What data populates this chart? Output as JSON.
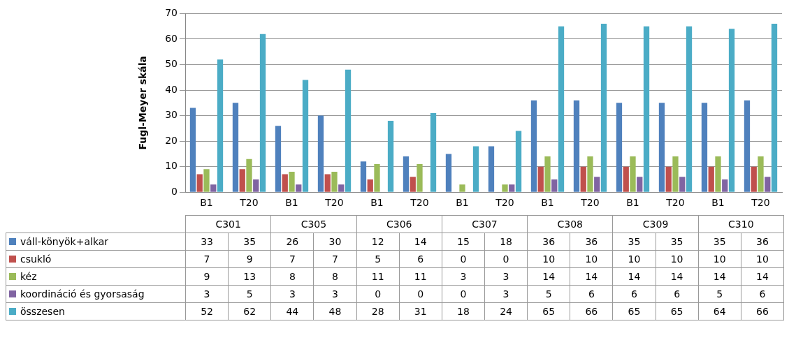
{
  "chart_data": {
    "type": "bar",
    "ylabel": "Fugl-Meyer skála",
    "categories": [
      "B1",
      "T20",
      "B1",
      "T20",
      "B1",
      "T20",
      "B1",
      "T20",
      "B1",
      "T20",
      "B1",
      "T20",
      "B1",
      "T20"
    ],
    "annotations": [
      "C301",
      "C305",
      "C306",
      "C307",
      "C308",
      "C309",
      "C310"
    ],
    "series": [
      {
        "name": "váll-könyök+alkar",
        "color": "#4f81bd",
        "values": [
          33,
          35,
          26,
          30,
          12,
          14,
          15,
          18,
          36,
          36,
          35,
          35,
          35,
          36
        ]
      },
      {
        "name": "csukló",
        "color": "#c0504d",
        "values": [
          7,
          9,
          7,
          7,
          5,
          6,
          0,
          0,
          10,
          10,
          10,
          10,
          10,
          10
        ]
      },
      {
        "name": "kéz",
        "color": "#9bbb59",
        "values": [
          9,
          13,
          8,
          8,
          11,
          11,
          3,
          3,
          14,
          14,
          14,
          14,
          14,
          14
        ]
      },
      {
        "name": "koordináció és gyorsaság",
        "color": "#8064a2",
        "values": [
          3,
          5,
          3,
          3,
          0,
          0,
          0,
          3,
          5,
          6,
          6,
          6,
          5,
          6
        ]
      },
      {
        "name": "összesen",
        "color": "#4bacc6",
        "values": [
          52,
          62,
          44,
          48,
          28,
          31,
          18,
          24,
          65,
          66,
          65,
          65,
          64,
          66
        ]
      }
    ],
    "ylim": [
      0,
      70
    ],
    "yticks": [
      0,
      10,
      20,
      30,
      40,
      50,
      60,
      70
    ],
    "grid": "y",
    "data_labels": true,
    "legend": "bottom"
  }
}
